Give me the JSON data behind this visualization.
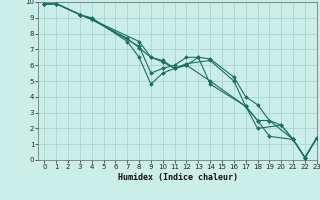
{
  "xlabel": "Humidex (Indice chaleur)",
  "xlim": [
    -0.5,
    23
  ],
  "ylim": [
    0,
    10
  ],
  "background_color": "#cceee8",
  "grid_color": "#aad4cc",
  "line_color": "#1a6e62",
  "series": [
    {
      "x": [
        0,
        1,
        3,
        4,
        7,
        8,
        9,
        10,
        11,
        12,
        13,
        14,
        16,
        17,
        18,
        19,
        20,
        21,
        22,
        23
      ],
      "y": [
        9.85,
        9.9,
        9.2,
        9.0,
        7.5,
        6.5,
        4.8,
        5.5,
        5.8,
        6.0,
        6.5,
        6.4,
        5.25,
        4.0,
        3.5,
        2.5,
        2.2,
        1.3,
        0.15,
        1.4
      ]
    },
    {
      "x": [
        0,
        1,
        3,
        4,
        7,
        8,
        9,
        10,
        11,
        12,
        14,
        16,
        17,
        18,
        19,
        21,
        22,
        23
      ],
      "y": [
        9.85,
        9.9,
        9.2,
        8.9,
        7.7,
        7.1,
        6.5,
        6.3,
        5.8,
        6.1,
        6.3,
        5.0,
        3.4,
        2.5,
        1.5,
        1.3,
        0.15,
        1.4
      ]
    },
    {
      "x": [
        0,
        1,
        3,
        4,
        8,
        9,
        10,
        11,
        12,
        13,
        14,
        17,
        18,
        19,
        21,
        22,
        23
      ],
      "y": [
        9.85,
        9.9,
        9.2,
        8.9,
        7.2,
        5.5,
        5.8,
        6.0,
        6.5,
        6.5,
        4.8,
        3.4,
        2.5,
        2.5,
        1.3,
        0.15,
        1.4
      ]
    },
    {
      "x": [
        0,
        1,
        3,
        4,
        8,
        9,
        10,
        11,
        12,
        14,
        17,
        18,
        20,
        21,
        22,
        23
      ],
      "y": [
        9.85,
        9.9,
        9.2,
        8.9,
        7.5,
        6.5,
        6.2,
        5.8,
        6.0,
        5.0,
        3.4,
        2.0,
        2.2,
        1.3,
        0.15,
        1.4
      ]
    }
  ]
}
